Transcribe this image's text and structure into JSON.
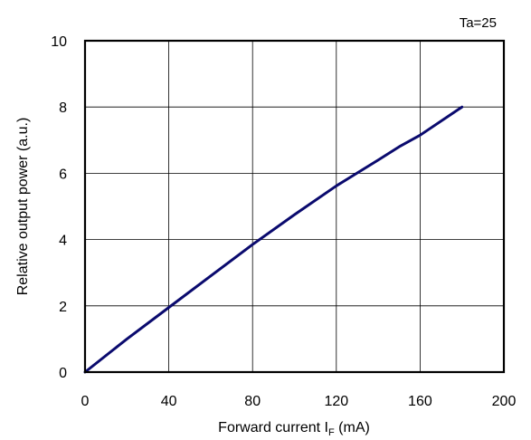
{
  "chart_data": {
    "type": "line",
    "annotation": "Ta=25",
    "xlabel": {
      "text": "Forward current I",
      "sub": "F",
      "suffix": " (mA)"
    },
    "ylabel": "Relative output power (a.u.)",
    "xlim": [
      0,
      200
    ],
    "ylim": [
      0,
      10
    ],
    "xticks": [
      "0",
      "40",
      "80",
      "120",
      "160",
      "200"
    ],
    "yticks": [
      "0",
      "2",
      "4",
      "6",
      "8",
      "10"
    ],
    "grid": true,
    "line_color": "#0a0a6e",
    "series": [
      {
        "x": [
          0,
          20,
          40,
          60,
          80,
          100,
          120,
          140,
          150,
          160,
          180
        ],
        "y": [
          0,
          1.0,
          1.95,
          2.9,
          3.85,
          4.75,
          5.62,
          6.4,
          6.8,
          7.15,
          8.0
        ]
      }
    ]
  }
}
